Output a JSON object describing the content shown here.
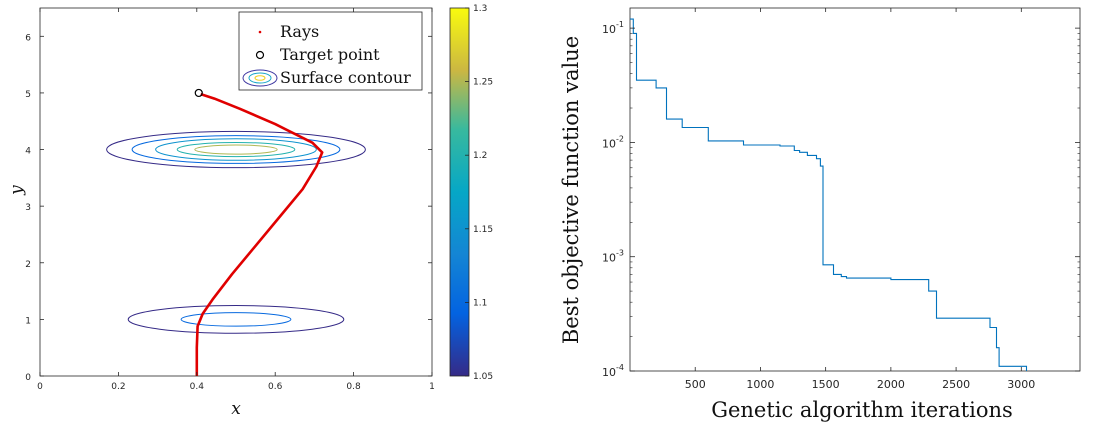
{
  "chart_data": [
    {
      "type": "line",
      "xlabel": "x",
      "ylabel": "y",
      "xlim": [
        0,
        1
      ],
      "ylim": [
        0,
        6.5
      ],
      "xticks": [
        "0",
        "0.2",
        "0.4",
        "0.6",
        "0.8",
        "1"
      ],
      "yticks": [
        "0",
        "1",
        "2",
        "3",
        "4",
        "5",
        "6"
      ],
      "legend": {
        "placement": "top-right",
        "entries": [
          "Rays",
          "Target point",
          "Surface contour"
        ]
      },
      "rays": [
        [
          0.4,
          0
        ],
        [
          0.4,
          0.5
        ],
        [
          0.402,
          0.88
        ],
        [
          0.415,
          1.1
        ],
        [
          0.44,
          1.35
        ],
        [
          0.49,
          1.8
        ],
        [
          0.55,
          2.3
        ],
        [
          0.61,
          2.8
        ],
        [
          0.67,
          3.3
        ],
        [
          0.705,
          3.7
        ],
        [
          0.72,
          3.95
        ],
        [
          0.695,
          4.12
        ],
        [
          0.6,
          4.45
        ],
        [
          0.51,
          4.72
        ],
        [
          0.445,
          4.9
        ],
        [
          0.41,
          4.98
        ]
      ],
      "target_point": [
        0.405,
        5.0
      ],
      "contours": [
        {
          "center": [
            0.5,
            4.0
          ],
          "rx": [
            0.33,
            0.265,
            0.205,
            0.15,
            0.105
          ],
          "ry": [
            0.32,
            0.245,
            0.19,
            0.125,
            0.08
          ],
          "levels": [
            1.05,
            1.1,
            1.15,
            1.2,
            1.25
          ]
        },
        {
          "center": [
            0.5,
            1.0
          ],
          "rx": [
            0.275,
            0.14
          ],
          "ry": [
            0.245,
            0.12
          ],
          "levels": [
            1.05,
            1.1
          ]
        }
      ],
      "colorbar": {
        "min": 1.05,
        "max": 1.3,
        "ticks": [
          "1.05",
          "1.1",
          "1.15",
          "1.2",
          "1.25",
          "1.3"
        ]
      },
      "colors": {
        "rays": "#e00000",
        "target": "#000000"
      }
    },
    {
      "type": "line",
      "xlabel": "Genetic algorithm iterations",
      "ylabel": "Best objective function value",
      "xlim": [
        0,
        3450
      ],
      "ylim": [
        0.0001,
        0.15
      ],
      "yscale": "log",
      "xticks": [
        "500",
        "1000",
        "1500",
        "2000",
        "2500",
        "3000"
      ],
      "yticks": [
        "10^-1",
        "10^-2",
        "10^-3",
        "10^-4"
      ],
      "grid": false,
      "series": [
        {
          "x": [
            0,
            25,
            25,
            50,
            50,
            200,
            200,
            280,
            280,
            400,
            400,
            600,
            600,
            870,
            870,
            1150,
            1150,
            1260,
            1260,
            1300,
            1300,
            1360,
            1360,
            1430,
            1430,
            1460,
            1460,
            1480,
            1480,
            1560,
            1560,
            1620,
            1620,
            1660,
            1660,
            2000,
            2000,
            2290,
            2290,
            2350,
            2350,
            2760,
            2760,
            2810,
            2810,
            2830,
            2830,
            3040,
            3040
          ],
          "y": [
            0.12,
            0.12,
            0.09,
            0.09,
            0.035,
            0.035,
            0.03,
            0.03,
            0.016,
            0.016,
            0.0135,
            0.0135,
            0.0103,
            0.0103,
            0.0095,
            0.0095,
            0.0093,
            0.0093,
            0.0085,
            0.0085,
            0.0082,
            0.0082,
            0.0077,
            0.0077,
            0.0072,
            0.0072,
            0.0062,
            0.0062,
            0.00085,
            0.00085,
            0.0007,
            0.0007,
            0.00067,
            0.00067,
            0.00065,
            0.00065,
            0.00063,
            0.00063,
            0.0005,
            0.0005,
            0.00029,
            0.00029,
            0.00024,
            0.00024,
            0.00016,
            0.00016,
            0.00011,
            0.00011,
            0.0001
          ],
          "color": "#0072bd"
        }
      ]
    }
  ]
}
